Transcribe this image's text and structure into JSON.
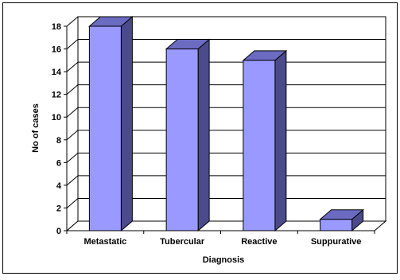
{
  "chart_data": {
    "type": "bar",
    "title": "",
    "xlabel": "Diagnosis",
    "ylabel": "No of cases",
    "categories": [
      "Metastatic",
      "Tubercular",
      "Reactive",
      "Suppurative"
    ],
    "values": [
      18,
      16,
      15,
      1
    ],
    "ylim": [
      0,
      18
    ],
    "yticks": [
      0,
      2,
      4,
      6,
      8,
      10,
      12,
      14,
      16,
      18
    ],
    "ytick_labels": [
      "0",
      "2",
      "4",
      "6",
      "8",
      "10",
      "12",
      "14",
      "16",
      "18"
    ],
    "grid": true,
    "legend": "none",
    "style": "3d-bar",
    "colors": {
      "bar_front": "#9999FF",
      "bar_top": "#6B6BC2",
      "bar_side": "#4B4B8C",
      "bar_edge": "#000000",
      "grid": "#000000",
      "axis": "#000000",
      "background": "#FFFFFF"
    }
  }
}
